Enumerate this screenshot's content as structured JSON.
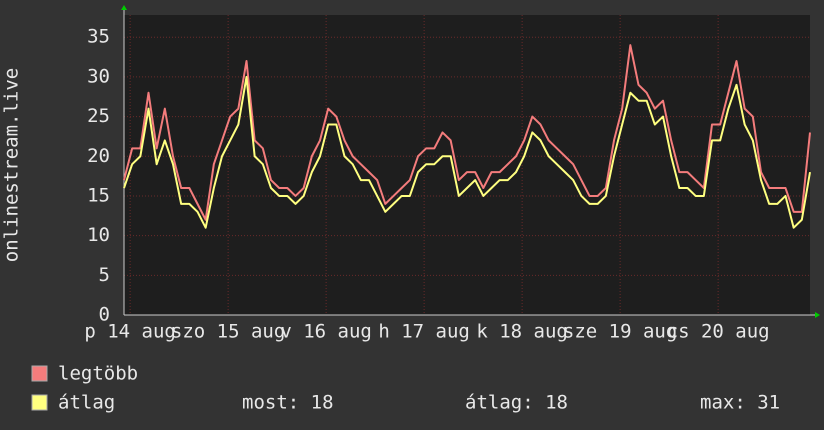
{
  "chart_data": {
    "type": "line",
    "y_label": "onlinestream.live",
    "x": [
      0,
      2,
      4,
      6,
      8,
      10,
      12,
      14,
      16,
      18,
      20,
      22,
      24,
      26,
      28,
      30,
      32,
      34,
      36,
      38,
      40,
      42,
      44,
      46,
      48,
      50,
      52,
      54,
      56,
      58,
      60,
      62,
      64,
      66,
      68,
      70,
      72,
      74,
      76,
      78,
      80,
      82,
      84,
      86,
      88,
      90,
      92,
      94,
      96,
      98,
      100,
      102,
      104,
      106,
      108,
      110,
      112,
      114,
      116,
      118,
      120,
      122,
      124,
      126,
      128,
      130,
      132,
      134,
      136,
      138,
      140,
      142,
      144,
      146,
      148,
      150,
      152,
      154,
      156,
      158,
      160,
      162,
      164,
      166,
      168
    ],
    "series": [
      {
        "name": "legtöbb",
        "color": "#f47c7c",
        "values": [
          17,
          21,
          21,
          28,
          21,
          26,
          20,
          16,
          16,
          14,
          12,
          19,
          22,
          25,
          26,
          32,
          22,
          21,
          17,
          16,
          16,
          15,
          16,
          20,
          22,
          26,
          25,
          22,
          20,
          19,
          18,
          17,
          14,
          15,
          16,
          17,
          20,
          21,
          21,
          23,
          22,
          17,
          18,
          18,
          16,
          18,
          18,
          19,
          20,
          22,
          25,
          24,
          22,
          21,
          20,
          19,
          17,
          15,
          15,
          16,
          22,
          26,
          34,
          29,
          28,
          26,
          27,
          22,
          18,
          18,
          17,
          16,
          24,
          24,
          28,
          32,
          26,
          25,
          18,
          16,
          16,
          16,
          13,
          13,
          23
        ]
      },
      {
        "name": "átlag",
        "color": "#ffff80",
        "values": [
          16,
          19,
          20,
          26,
          19,
          22,
          19,
          14,
          14,
          13,
          11,
          16,
          20,
          22,
          24,
          30,
          20,
          19,
          16,
          15,
          15,
          14,
          15,
          18,
          20,
          24,
          24,
          20,
          19,
          17,
          17,
          15,
          13,
          14,
          15,
          15,
          18,
          19,
          19,
          20,
          20,
          15,
          16,
          17,
          15,
          16,
          17,
          17,
          18,
          20,
          23,
          22,
          20,
          19,
          18,
          17,
          15,
          14,
          14,
          15,
          20,
          24,
          28,
          27,
          27,
          24,
          25,
          20,
          16,
          16,
          15,
          15,
          22,
          22,
          26,
          29,
          24,
          22,
          17,
          14,
          14,
          15,
          11,
          12,
          18
        ]
      }
    ],
    "xlim": [
      0,
      168
    ],
    "xticks": [
      {
        "value": 1.5,
        "label": "p 14 aug"
      },
      {
        "value": 25.5,
        "label": "szo 15 aug"
      },
      {
        "value": 49.5,
        "label": "v 16 aug"
      },
      {
        "value": 73.5,
        "label": "h 17 aug"
      },
      {
        "value": 97.5,
        "label": "k 18 aug"
      },
      {
        "value": 121.5,
        "label": "sze 19 aug"
      },
      {
        "value": 145.5,
        "label": "cs 20 aug"
      }
    ],
    "ylim": [
      0,
      37.8
    ],
    "yticks": [
      0,
      5,
      10,
      15,
      20,
      25,
      30,
      35
    ],
    "grid": true,
    "stats": {
      "now": "most: 18",
      "avg": "átlag: 18",
      "max": "max: 31"
    }
  }
}
